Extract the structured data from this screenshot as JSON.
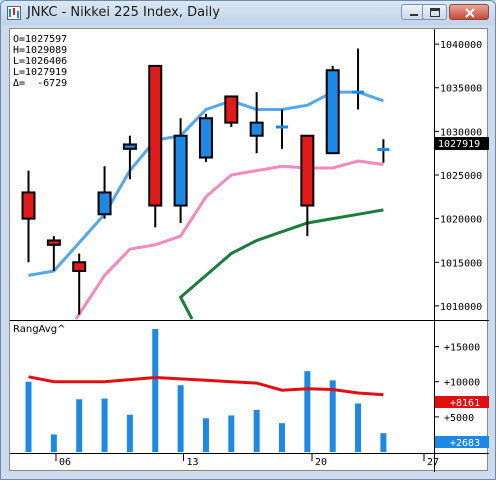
{
  "window": {
    "title": "JNKC - Nikkei 225 Index, Daily",
    "buttons": [
      "minimize-icon",
      "maximize-icon",
      "close-icon"
    ]
  },
  "ohlc_box": {
    "lines": [
      "O=1027597",
      "H=1029089",
      "L=1026406",
      "L=1027919",
      "Δ=  -6729"
    ]
  },
  "price_axis": {
    "ticks": [
      "1040000",
      "1035000",
      "1030000",
      "1025000",
      "1020000",
      "1015000",
      "1010000"
    ],
    "last_price": "1027919"
  },
  "indicator": {
    "label": "RangAvg^",
    "ticks": [
      "+15000",
      "+10000",
      "+5000"
    ],
    "avg_value": "+8161",
    "bar_value": "+2683"
  },
  "date_axis": {
    "labels": [
      "06",
      "13",
      "20",
      "27"
    ]
  },
  "colors": {
    "up": "#1e88e5",
    "down": "#e11b1b",
    "ma_fast": "#53a8ee",
    "ma_mid": "#f28ac0",
    "ma_slow": "#1b7d3c",
    "range_avg": "#e01010"
  },
  "chart_data": [
    {
      "type": "candlestick",
      "title": "JNKC - Nikkei 225 Index, Daily",
      "ylim": [
        1008500,
        1041500
      ],
      "x_ticks": [
        "06",
        "13",
        "20",
        "27"
      ],
      "candles": [
        {
          "open": 1023000,
          "high": 1025500,
          "low": 1015000,
          "close": 1020000
        },
        {
          "open": 1017500,
          "high": 1018000,
          "low": 1014000,
          "close": 1017000
        },
        {
          "open": 1015000,
          "high": 1016000,
          "low": 1009000,
          "close": 1014000
        },
        {
          "open": 1020500,
          "high": 1026000,
          "low": 1020000,
          "close": 1023000
        },
        {
          "open": 1028000,
          "high": 1029500,
          "low": 1024500,
          "close": 1028500
        },
        {
          "open": 1037500,
          "high": 1037500,
          "low": 1019000,
          "close": 1021500
        },
        {
          "open": 1021500,
          "high": 1031500,
          "low": 1019500,
          "close": 1029500
        },
        {
          "open": 1027000,
          "high": 1032000,
          "low": 1026500,
          "close": 1031500
        },
        {
          "open": 1034000,
          "high": 1034000,
          "low": 1030500,
          "close": 1031000
        },
        {
          "open": 1029500,
          "high": 1034500,
          "low": 1027500,
          "close": 1031000
        },
        {
          "open": 1030500,
          "high": 1032500,
          "low": 1028000,
          "close": 1030500
        },
        {
          "open": 1029500,
          "high": 1029500,
          "low": 1018000,
          "close": 1021500
        },
        {
          "open": 1027500,
          "high": 1037500,
          "low": 1027500,
          "close": 1037000
        },
        {
          "open": 1034500,
          "high": 1039500,
          "low": 1032500,
          "close": 1034500
        },
        {
          "open": 1027597,
          "high": 1029089,
          "low": 1026406,
          "close": 1027919
        }
      ],
      "ma_fast": [
        1013500,
        1014000,
        null,
        1020500,
        1025500,
        1029000,
        1029500,
        1032500,
        1033500,
        1032500,
        1032500,
        1033000,
        1034500,
        1034500,
        1033500
      ],
      "ma_mid": [
        null,
        null,
        1008500,
        1013500,
        1016500,
        1017000,
        1018000,
        1022500,
        1025000,
        1025500,
        1026000,
        1025800,
        1025800,
        1026600,
        1026200
      ],
      "ma_slow": [
        null,
        null,
        null,
        null,
        null,
        1008500,
        1011000,
        1013500,
        1016000,
        1017500,
        1018500,
        1019500,
        1020000,
        1020500,
        1021000
      ]
    },
    {
      "type": "bar",
      "title": "RangAvg^",
      "ylim": [
        0,
        18500
      ],
      "values": [
        10000,
        2500,
        7500,
        7600,
        5300,
        17500,
        9500,
        4800,
        5200,
        6000,
        4100,
        11500,
        10200,
        6900,
        2683
      ],
      "avg_line": [
        10700,
        10000,
        10000,
        10000,
        10300,
        10600,
        10400,
        10200,
        10000,
        9800,
        8800,
        9000,
        8900,
        8400,
        8161
      ]
    }
  ]
}
